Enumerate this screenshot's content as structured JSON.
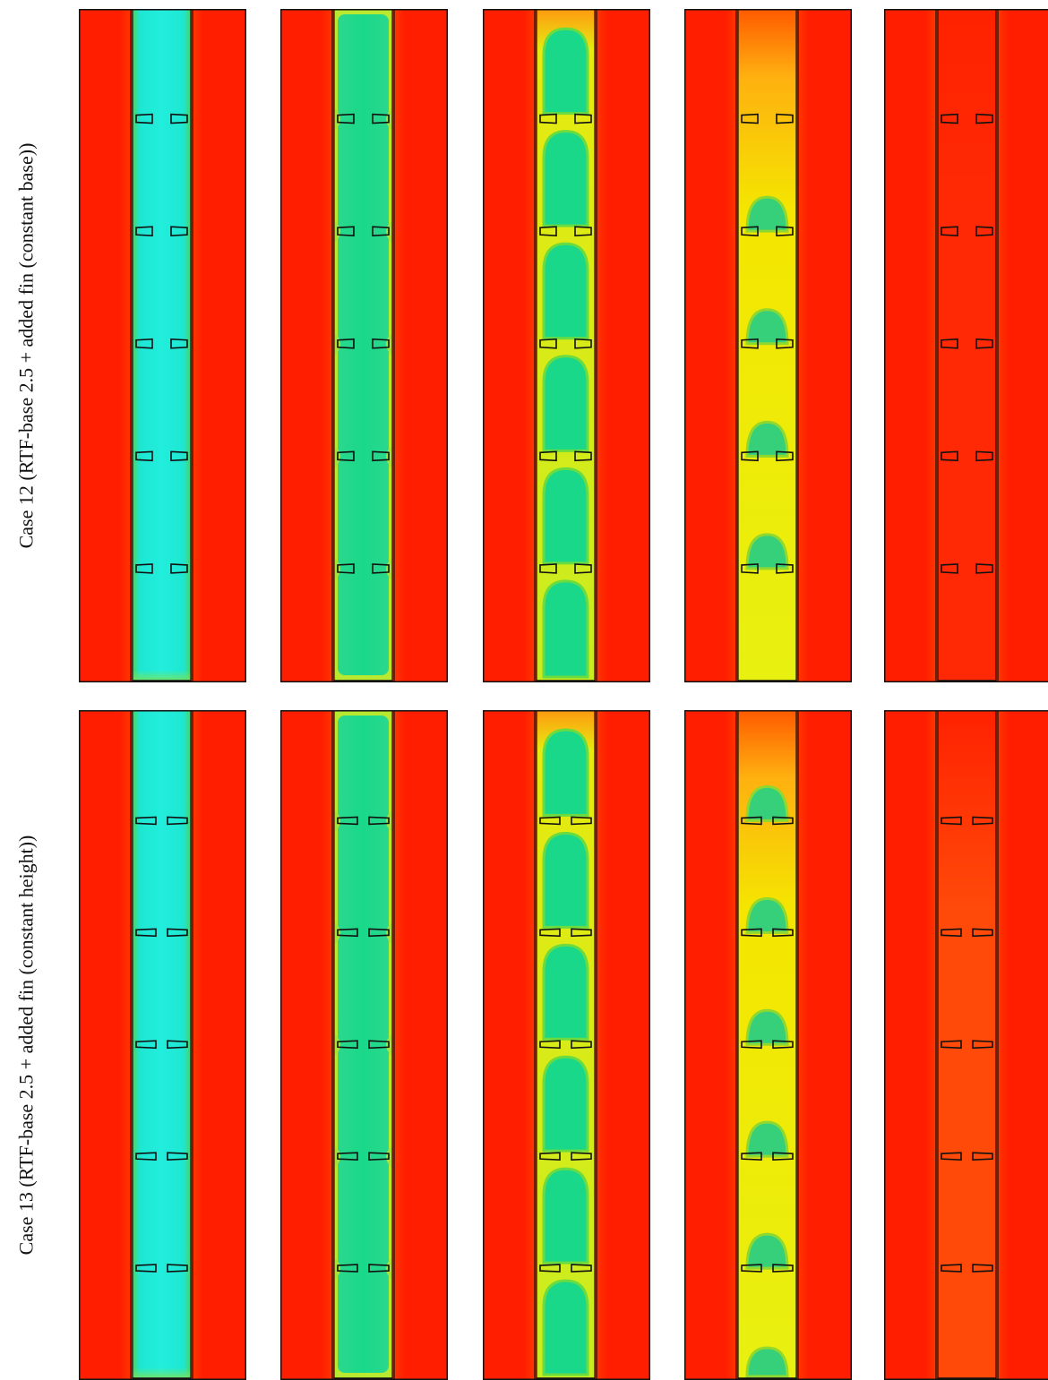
{
  "rows": [
    {
      "label": "Case 12 (RTF-base 2.5 + added fin (constant base))",
      "fin_type": "constant-base",
      "panels": [
        {
          "state": "fully-solid"
        },
        {
          "state": "early-melting"
        },
        {
          "state": "intermediate-melting"
        },
        {
          "state": "late-melting"
        },
        {
          "state": "fully-melted"
        }
      ]
    },
    {
      "label": "Case 13 (RTF-base 2.5 + added fin (constant height))",
      "fin_type": "constant-height",
      "panels": [
        {
          "state": "fully-solid"
        },
        {
          "state": "early-melting"
        },
        {
          "state": "intermediate-melting"
        },
        {
          "state": "late-melting"
        },
        {
          "state": "fully-melted"
        }
      ]
    }
  ],
  "colors": {
    "hot": "#ff1e00",
    "solid-cold": "#1ee6d2",
    "solid-green": "#19d88a",
    "transition-yellow": "#eef000",
    "late-yellow": "#f4e600",
    "melted-orange": "#ff4a0a",
    "outline": "#111111"
  },
  "fin_count_per_panel": 5
}
